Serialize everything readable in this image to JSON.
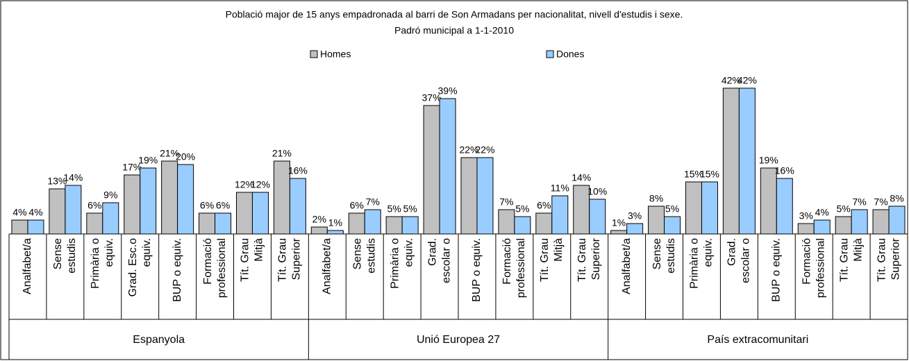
{
  "chart_data": {
    "type": "bar",
    "title": "Població major de 15 anys empadronada al barri de Son Armadans per nacionalitat, nivell d'estudis i sexe.",
    "subtitle": "Padró municipal a 1-1-2010",
    "groups": [
      {
        "name": "Espanyola",
        "categories": [
          [
            "Analfabet/a"
          ],
          [
            "Sense",
            "estudis"
          ],
          [
            "Primària o",
            "equiv."
          ],
          [
            "Grad. Esc.o",
            "equiv."
          ],
          [
            "BUP o equiv."
          ],
          [
            "Formació",
            "professional"
          ],
          [
            "Tít. Grau",
            "Mitjà"
          ],
          [
            "Tít. Grau",
            "Superior"
          ]
        ]
      },
      {
        "name": "Unió Europea 27",
        "categories": [
          [
            "Analfabet/a"
          ],
          [
            "Sense",
            "estudis"
          ],
          [
            "Primària o",
            "equiv."
          ],
          [
            "Grad.",
            "escolar o"
          ],
          [
            "BUP o equiv."
          ],
          [
            "Formació",
            "professional"
          ],
          [
            "Tít. Grau",
            "Mitjà"
          ],
          [
            "Tít. Grau",
            "Superior"
          ]
        ]
      },
      {
        "name": "País extracomunitari",
        "categories": [
          [
            "Analfabet/a"
          ],
          [
            "Sense",
            "estudis"
          ],
          [
            "Primària o",
            "equiv."
          ],
          [
            "Grad.",
            "escolar o"
          ],
          [
            "BUP o equiv."
          ],
          [
            "Formació",
            "professional"
          ],
          [
            "Tít. Grau",
            "Mitjà"
          ],
          [
            "Tít. Grau",
            "Superior"
          ]
        ]
      }
    ],
    "series": [
      {
        "name": "Homes",
        "color": "#c0c0c0",
        "values": [
          4,
          13,
          6,
          17,
          21,
          6,
          12,
          21,
          2,
          6,
          5,
          37,
          22,
          7,
          6,
          14,
          1,
          8,
          15,
          42,
          19,
          3,
          5,
          7
        ],
        "value_labels": [
          "4%",
          "13%",
          "6%",
          "17%",
          "21%",
          "6%",
          "12%",
          "21%",
          "2%",
          "6%",
          "5%",
          "37%",
          "22%",
          "7%",
          "6%",
          "14%",
          "1%",
          "8%",
          "15%",
          "42%",
          "19%",
          "3%",
          "5%",
          "7%"
        ]
      },
      {
        "name": "Dones",
        "color": "#99ccff",
        "values": [
          4,
          14,
          9,
          19,
          20,
          6,
          12,
          16,
          1,
          7,
          5,
          39,
          22,
          5,
          11,
          10,
          3,
          5,
          15,
          42,
          16,
          4,
          7,
          8
        ],
        "value_labels": [
          "4%",
          "14%",
          "9%",
          "19%",
          "20%",
          "6%",
          "12%",
          "16%",
          "1%",
          "7%",
          "5%",
          "39%",
          "22%",
          "5%",
          "11%",
          "10%",
          "3%",
          "5%",
          "15%",
          "42%",
          "16%",
          "4%",
          "7%",
          "8%"
        ]
      }
    ]
  }
}
